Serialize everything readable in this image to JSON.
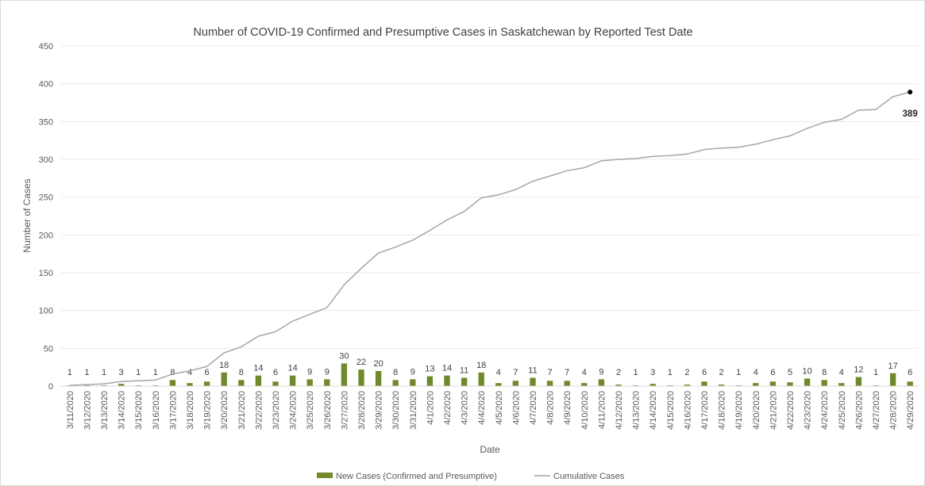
{
  "chart_data": {
    "type": "bar",
    "title": "Number of COVID-19 Confirmed and Presumptive Cases in Saskatchewan by Reported Test Date",
    "xlabel": "Date",
    "ylabel": "Number of Cases",
    "ylim": [
      0,
      450
    ],
    "yticks": [
      0,
      50,
      100,
      150,
      200,
      250,
      300,
      350,
      400,
      450
    ],
    "grid": true,
    "legend_position": "bottom",
    "categories": [
      "3/11/2020",
      "3/12/2020",
      "3/13/2020",
      "3/14/2020",
      "3/15/2020",
      "3/16/2020",
      "3/17/2020",
      "3/18/2020",
      "3/19/2020",
      "3/20/2020",
      "3/21/2020",
      "3/22/2020",
      "3/23/2020",
      "3/24/2020",
      "3/25/2020",
      "3/26/2020",
      "3/27/2020",
      "3/28/2020",
      "3/29/2020",
      "3/30/2020",
      "3/31/2020",
      "4/1/2020",
      "4/2/2020",
      "4/3/2020",
      "4/4/2020",
      "4/5/2020",
      "4/6/2020",
      "4/7/2020",
      "4/8/2020",
      "4/9/2020",
      "4/10/2020",
      "4/11/2020",
      "4/12/2020",
      "4/13/2020",
      "4/14/2020",
      "4/15/2020",
      "4/16/2020",
      "4/17/2020",
      "4/18/2020",
      "4/19/2020",
      "4/20/2020",
      "4/21/2020",
      "4/22/2020",
      "4/23/2020",
      "4/24/2020",
      "4/25/2020",
      "4/26/2020",
      "4/27/2020",
      "4/28/2020",
      "4/29/2020"
    ],
    "series": [
      {
        "name": "New Cases (Confirmed and Presumptive)",
        "type": "bar",
        "color": "#70892b",
        "values": [
          1,
          1,
          1,
          3,
          1,
          1,
          8,
          4,
          6,
          18,
          8,
          14,
          6,
          14,
          9,
          9,
          30,
          22,
          20,
          8,
          9,
          13,
          14,
          11,
          18,
          4,
          7,
          11,
          7,
          7,
          4,
          9,
          2,
          1,
          3,
          1,
          2,
          6,
          2,
          1,
          4,
          6,
          5,
          10,
          8,
          4,
          12,
          1,
          17,
          6
        ]
      },
      {
        "name": "Cumulative Cases",
        "type": "line",
        "color": "#a6a6a6",
        "values": [
          1,
          2,
          3,
          6,
          7,
          8,
          16,
          20,
          26,
          44,
          52,
          66,
          72,
          86,
          95,
          104,
          134,
          156,
          176,
          184,
          193,
          206,
          220,
          231,
          249,
          253,
          260,
          271,
          278,
          285,
          289,
          298,
          300,
          301,
          304,
          305,
          307,
          313,
          315,
          316,
          320,
          326,
          331,
          341,
          349,
          353,
          365,
          366,
          383,
          389
        ]
      }
    ],
    "annotations": [
      {
        "series": "Cumulative Cases",
        "category": "4/29/2020",
        "value": 389,
        "text": "389"
      }
    ]
  }
}
